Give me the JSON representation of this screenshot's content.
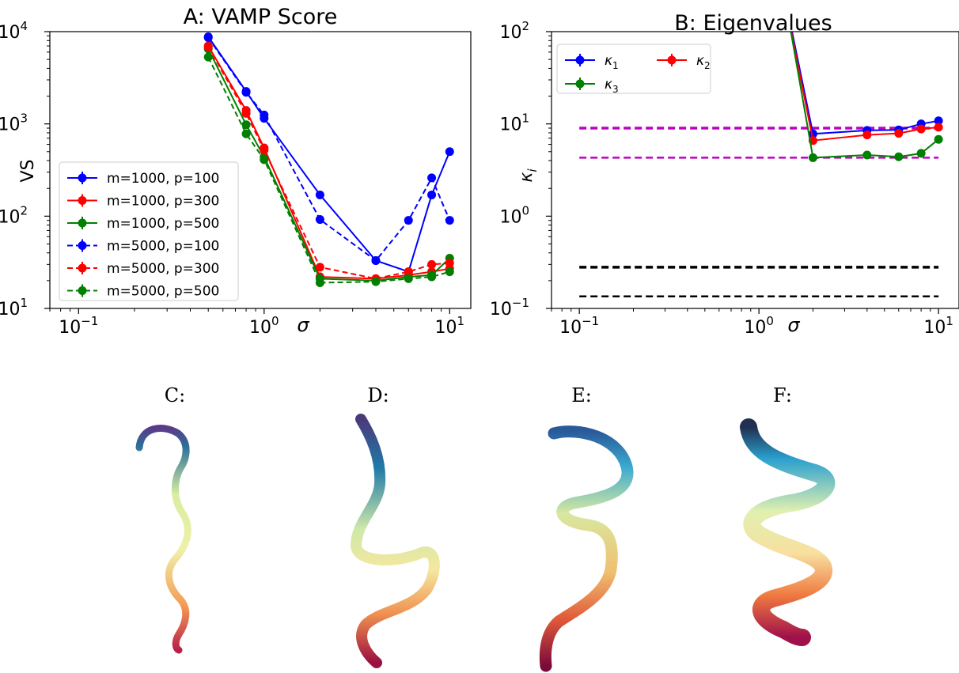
{
  "chart_data": [
    {
      "type": "line",
      "title": "A: VAMP Score",
      "xlabel": "σ",
      "ylabel": "VS",
      "xscale": "log",
      "yscale": "log",
      "xlim": [
        0.07,
        13
      ],
      "ylim": [
        10,
        10000
      ],
      "x_ticks": [
        {
          "v": 0.1,
          "base": "10",
          "exp": "−1"
        },
        {
          "v": 1,
          "base": "10",
          "exp": "0"
        },
        {
          "v": 10,
          "base": "10",
          "exp": "1"
        }
      ],
      "y_ticks": [
        {
          "v": 10,
          "base": "10",
          "exp": "1"
        },
        {
          "v": 100,
          "base": "10",
          "exp": "2"
        },
        {
          "v": 1000,
          "base": "10",
          "exp": "3"
        },
        {
          "v": 10000,
          "base": "10",
          "exp": "4"
        }
      ],
      "legend_position": "lower-left",
      "series": [
        {
          "name": "m=1000, p=100",
          "color": "#0000ff",
          "dashed": false,
          "x": [
            0.5,
            0.8,
            1,
            2,
            4,
            6,
            8,
            10
          ],
          "y": [
            8800,
            2250,
            1150,
            170,
            33,
            25,
            170,
            500
          ]
        },
        {
          "name": "m=1000, p=300",
          "color": "#ff0000",
          "dashed": false,
          "x": [
            0.5,
            0.8,
            1,
            2,
            4,
            6,
            8,
            10
          ],
          "y": [
            7000,
            1400,
            550,
            22,
            21,
            23,
            25,
            27
          ]
        },
        {
          "name": "m=1000, p=500",
          "color": "#008000",
          "dashed": false,
          "x": [
            0.5,
            0.8,
            1,
            2,
            4,
            6,
            8,
            10
          ],
          "y": [
            6500,
            980,
            440,
            21,
            20,
            22,
            23,
            35
          ]
        },
        {
          "name": "m=5000, p=100",
          "color": "#0000ff",
          "dashed": true,
          "x": [
            0.5,
            0.8,
            1,
            2,
            4,
            6,
            8,
            10
          ],
          "y": [
            8600,
            2200,
            1250,
            92,
            33,
            90,
            260,
            90
          ]
        },
        {
          "name": "m=5000, p=300",
          "color": "#ff0000",
          "dashed": true,
          "x": [
            0.5,
            0.8,
            1,
            2,
            4,
            6,
            8,
            10
          ],
          "y": [
            6800,
            1300,
            520,
            28,
            21,
            25,
            30,
            31
          ]
        },
        {
          "name": "m=5000, p=500",
          "color": "#008000",
          "dashed": true,
          "x": [
            0.5,
            0.8,
            1,
            2,
            4,
            6,
            8,
            10
          ],
          "y": [
            5300,
            780,
            410,
            19,
            19.5,
            21,
            22,
            25
          ]
        }
      ]
    },
    {
      "type": "line",
      "title": "B: Eigenvalues",
      "xlabel": "σ",
      "ylabel": "κ",
      "ylabel_sub": "i",
      "xscale": "log",
      "yscale": "log",
      "xlim": [
        0.07,
        13
      ],
      "ylim": [
        0.1,
        100
      ],
      "x_ticks": [
        {
          "v": 0.1,
          "base": "10",
          "exp": "−1"
        },
        {
          "v": 1,
          "base": "10",
          "exp": "0"
        },
        {
          "v": 10,
          "base": "10",
          "exp": "1"
        }
      ],
      "y_ticks": [
        {
          "v": 0.1,
          "base": "10",
          "exp": "−1"
        },
        {
          "v": 1,
          "base": "10",
          "exp": "0"
        },
        {
          "v": 10,
          "base": "10",
          "exp": "1"
        },
        {
          "v": 100,
          "base": "10",
          "exp": "2"
        }
      ],
      "legend_position": "top-left",
      "series": [
        {
          "name": "κ",
          "sub": "1",
          "color": "#0000ff",
          "dashed": false,
          "x": [
            1.5,
            2,
            4,
            6,
            8,
            10
          ],
          "y": [
            120,
            7.8,
            8.5,
            8.6,
            10,
            10.8
          ]
        },
        {
          "name": "κ",
          "sub": "2",
          "color": "#ff0000",
          "dashed": false,
          "x": [
            1.5,
            2,
            4,
            6,
            8,
            10
          ],
          "y": [
            110,
            6.6,
            7.6,
            7.9,
            8.8,
            9.2
          ]
        },
        {
          "name": "κ",
          "sub": "3",
          "color": "#008000",
          "dashed": false,
          "x": [
            1.5,
            2,
            4,
            6,
            8,
            10
          ],
          "y": [
            105,
            4.3,
            4.6,
            4.4,
            4.8,
            6.8
          ]
        }
      ],
      "reference_lines": [
        {
          "y": 9.0,
          "color": "#bf00bf",
          "width": 3.5
        },
        {
          "y": 4.3,
          "color": "#bf00bf",
          "width": 2.5
        },
        {
          "y": 0.28,
          "color": "#000000",
          "width": 3.5
        },
        {
          "y": 0.135,
          "color": "#000000",
          "width": 2.5
        }
      ]
    }
  ],
  "panels": [
    {
      "label": "C:"
    },
    {
      "label": "D:"
    },
    {
      "label": "E:"
    },
    {
      "label": "F:"
    }
  ]
}
